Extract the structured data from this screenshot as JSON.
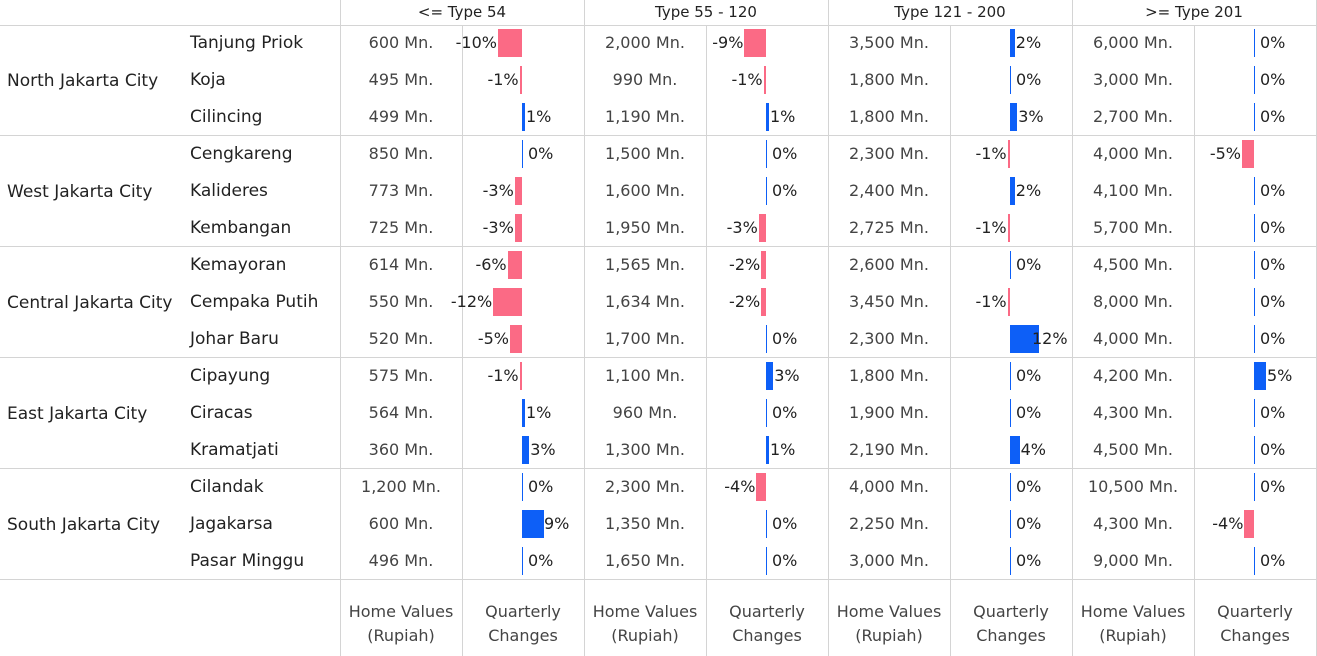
{
  "chart_data": {
    "type": "table",
    "column_groups": [
      "<= Type 54",
      "Type 55 - 120",
      "Type 121 - 200",
      ">= Type 201"
    ],
    "measure_labels": {
      "home_values": [
        "Home Values",
        "(Rupiah)"
      ],
      "quarterly_changes": [
        "Quarterly",
        "Changes"
      ]
    },
    "value_suffix": " Mn.",
    "pct_suffix": "%",
    "colors": {
      "positive": "#0d5ff7",
      "negative": "#fb6a85",
      "zero_line": "#0d5ff7"
    },
    "cities": [
      {
        "name": "North Jakarta City",
        "districts": [
          {
            "name": "Tanjung Priok",
            "values": [
              600,
              2000,
              3500,
              6000
            ],
            "changes": [
              -10,
              -9,
              2,
              0
            ]
          },
          {
            "name": "Koja",
            "values": [
              495,
              990,
              1800,
              3000
            ],
            "changes": [
              -1,
              -1,
              0,
              0
            ]
          },
          {
            "name": "Cilincing",
            "values": [
              499,
              1190,
              1800,
              2700
            ],
            "changes": [
              1,
              1,
              3,
              0
            ]
          }
        ]
      },
      {
        "name": "West Jakarta City",
        "districts": [
          {
            "name": "Cengkareng",
            "values": [
              850,
              1500,
              2300,
              4000
            ],
            "changes": [
              0,
              0,
              -1,
              -5
            ]
          },
          {
            "name": "Kalideres",
            "values": [
              773,
              1600,
              2400,
              4100
            ],
            "changes": [
              -3,
              0,
              2,
              0
            ]
          },
          {
            "name": "Kembangan",
            "values": [
              725,
              1950,
              2725,
              5700
            ],
            "changes": [
              -3,
              -3,
              -1,
              0
            ]
          }
        ]
      },
      {
        "name": "Central Jakarta City",
        "districts": [
          {
            "name": "Kemayoran",
            "values": [
              614,
              1565,
              2600,
              4500
            ],
            "changes": [
              -6,
              -2,
              0,
              0
            ]
          },
          {
            "name": "Cempaka Putih",
            "values": [
              550,
              1634,
              3450,
              8000
            ],
            "changes": [
              -12,
              -2,
              -1,
              0
            ]
          },
          {
            "name": "Johar Baru",
            "values": [
              520,
              1700,
              2300,
              4000
            ],
            "changes": [
              -5,
              0,
              12,
              0
            ]
          }
        ]
      },
      {
        "name": "East Jakarta City",
        "districts": [
          {
            "name": "Cipayung",
            "values": [
              575,
              1100,
              1800,
              4200
            ],
            "changes": [
              -1,
              3,
              0,
              5
            ]
          },
          {
            "name": "Ciracas",
            "values": [
              564,
              960,
              1900,
              4300
            ],
            "changes": [
              1,
              0,
              0,
              0
            ]
          },
          {
            "name": "Kramatjati",
            "values": [
              360,
              1300,
              2190,
              4500
            ],
            "changes": [
              3,
              1,
              4,
              0
            ]
          }
        ]
      },
      {
        "name": "South Jakarta City",
        "districts": [
          {
            "name": "Cilandak",
            "values": [
              1200,
              2300,
              4000,
              10500
            ],
            "changes": [
              0,
              -4,
              0,
              0
            ]
          },
          {
            "name": "Jagakarsa",
            "values": [
              600,
              1350,
              2250,
              4300
            ],
            "changes": [
              9,
              0,
              0,
              -4
            ]
          },
          {
            "name": "Pasar Minggu",
            "values": [
              496,
              1650,
              3000,
              9000
            ],
            "changes": [
              0,
              0,
              0,
              0
            ]
          }
        ]
      }
    ]
  }
}
